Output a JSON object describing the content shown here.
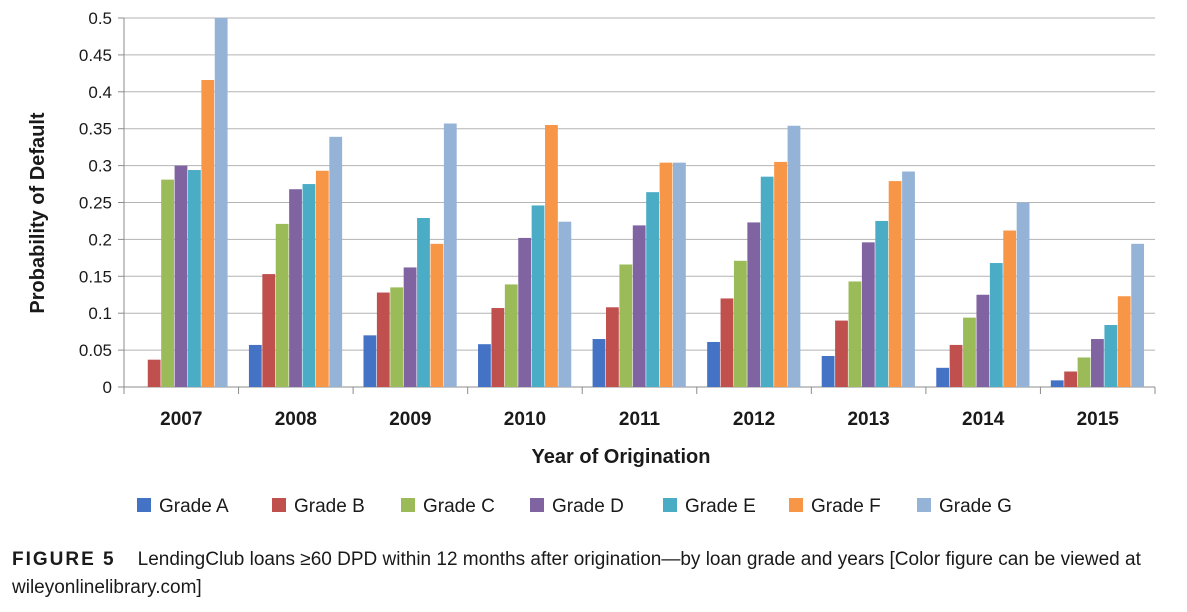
{
  "chart_data": {
    "type": "bar",
    "title": "",
    "xlabel": "Year of Origination",
    "ylabel": "Probability of Default",
    "ylim": [
      0,
      0.5
    ],
    "yticks": [
      "0",
      "0.05",
      "0.1",
      "0.15",
      "0.2",
      "0.25",
      "0.3",
      "0.35",
      "0.4",
      "0.45",
      "0.5"
    ],
    "grid": true,
    "legend_position": "bottom",
    "categories": [
      "2007",
      "2008",
      "2009",
      "2010",
      "2011",
      "2012",
      "2013",
      "2014",
      "2015"
    ],
    "series": [
      {
        "name": "Grade A",
        "color": "#4472C4",
        "values": [
          0,
          0.057,
          0.07,
          0.058,
          0.065,
          0.061,
          0.042,
          0.026,
          0.009
        ]
      },
      {
        "name": "Grade B",
        "color": "#C0504D",
        "values": [
          0.037,
          0.153,
          0.128,
          0.107,
          0.108,
          0.12,
          0.09,
          0.057,
          0.021
        ]
      },
      {
        "name": "Grade C",
        "color": "#9BBB59",
        "values": [
          0.281,
          0.221,
          0.135,
          0.139,
          0.166,
          0.171,
          0.143,
          0.094,
          0.04
        ]
      },
      {
        "name": "Grade D",
        "color": "#8064A2",
        "values": [
          0.3,
          0.268,
          0.162,
          0.202,
          0.219,
          0.223,
          0.196,
          0.125,
          0.065
        ]
      },
      {
        "name": "Grade E",
        "color": "#4BACC6",
        "values": [
          0.294,
          0.275,
          0.229,
          0.246,
          0.264,
          0.285,
          0.225,
          0.168,
          0.084
        ]
      },
      {
        "name": "Grade F",
        "color": "#F79646",
        "values": [
          0.416,
          0.293,
          0.194,
          0.355,
          0.304,
          0.305,
          0.279,
          0.212,
          0.123
        ]
      },
      {
        "name": "Grade G",
        "color": "#95B3D7",
        "values": [
          0.5,
          0.339,
          0.357,
          0.224,
          0.304,
          0.354,
          0.292,
          0.25,
          0.194
        ]
      }
    ]
  },
  "caption": {
    "label": "FIGURE 5",
    "text": "LendingClub loans ≥60 DPD within 12 months after origination—by loan grade and years [Color figure can be viewed at wileyonlinelibrary.com]"
  }
}
